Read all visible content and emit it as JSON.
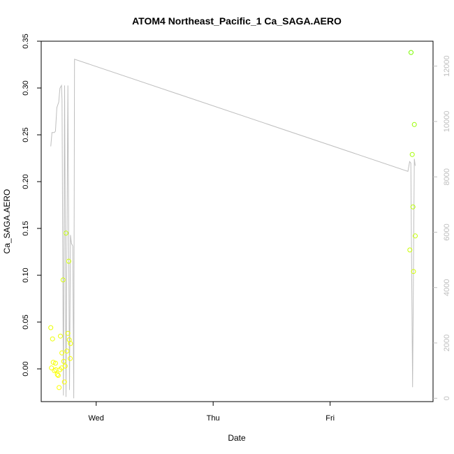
{
  "chart_data": {
    "type": "scatter",
    "title": "ATOM4 Northeast_Pacific_1 Ca_SAGA.AERO",
    "xlabel": "Date",
    "ylabel": "Ca_SAGA.AERO",
    "x_ticks": [
      {
        "label": "Wed",
        "day": 1.0
      },
      {
        "label": "Thu",
        "day": 2.0
      },
      {
        "label": "Fri",
        "day": 3.0
      }
    ],
    "xlim": [
      0.53,
      3.88
    ],
    "ylim": [
      -0.035,
      0.35
    ],
    "y_ticks": [
      0.0,
      0.05,
      0.1,
      0.15,
      0.2,
      0.25,
      0.3,
      0.35
    ],
    "y_tick_labels": [
      "0.00",
      "0.05",
      "0.10",
      "0.15",
      "0.20",
      "0.25",
      "0.30",
      "0.35"
    ],
    "y2lim": [
      -120,
      12900
    ],
    "y2_ticks": [
      0,
      2000,
      4000,
      6000,
      8000,
      10000,
      12000
    ],
    "y2_tick_labels": [
      "0",
      "2000",
      "4000",
      "6000",
      "8000",
      "10000",
      "12000"
    ],
    "grid": false,
    "series": [
      {
        "kind": "points",
        "color_low": "#ffff00",
        "color_high": "#7cfc00",
        "points": [
          {
            "x": 0.612,
            "y": 0.044
          },
          {
            "x": 0.618,
            "y": 0.001
          },
          {
            "x": 0.627,
            "y": 0.032
          },
          {
            "x": 0.633,
            "y": 0.007
          },
          {
            "x": 0.643,
            "y": -0.002
          },
          {
            "x": 0.652,
            "y": 0.006
          },
          {
            "x": 0.655,
            "y": -0.001
          },
          {
            "x": 0.668,
            "y": -0.006
          },
          {
            "x": 0.676,
            "y": -0.007
          },
          {
            "x": 0.683,
            "y": -0.02
          },
          {
            "x": 0.69,
            "y": -0.001
          },
          {
            "x": 0.694,
            "y": 0.035
          },
          {
            "x": 0.705,
            "y": 0.001
          },
          {
            "x": 0.707,
            "y": 0.017
          },
          {
            "x": 0.717,
            "y": 0.095
          },
          {
            "x": 0.722,
            "y": 0.008
          },
          {
            "x": 0.728,
            "y": -0.014
          },
          {
            "x": 0.735,
            "y": 0.003
          },
          {
            "x": 0.742,
            "y": 0.145
          },
          {
            "x": 0.75,
            "y": 0.019
          },
          {
            "x": 0.758,
            "y": 0.038
          },
          {
            "x": 0.765,
            "y": 0.115
          },
          {
            "x": 0.77,
            "y": 0.031
          },
          {
            "x": 0.78,
            "y": 0.027
          },
          {
            "x": 0.778,
            "y": 0.011
          },
          {
            "x": 3.682,
            "y": 0.127
          },
          {
            "x": 3.692,
            "y": 0.338
          },
          {
            "x": 3.702,
            "y": 0.229
          },
          {
            "x": 3.708,
            "y": 0.173
          },
          {
            "x": 3.713,
            "y": 0.104
          },
          {
            "x": 3.72,
            "y": 0.261
          },
          {
            "x": 3.728,
            "y": 0.142
          }
        ]
      },
      {
        "kind": "line",
        "axis": "right",
        "color": "#bebebe",
        "points": [
          {
            "x": 0.612,
            "y": 9100
          },
          {
            "x": 0.622,
            "y": 9600
          },
          {
            "x": 0.642,
            "y": 9600
          },
          {
            "x": 0.652,
            "y": 9650
          },
          {
            "x": 0.664,
            "y": 10500
          },
          {
            "x": 0.68,
            "y": 10700
          },
          {
            "x": 0.69,
            "y": 11200
          },
          {
            "x": 0.703,
            "y": 11300
          },
          {
            "x": 0.708,
            "y": 10800
          },
          {
            "x": 0.72,
            "y": 100
          },
          {
            "x": 0.73,
            "y": 11300
          },
          {
            "x": 0.742,
            "y": 50
          },
          {
            "x": 0.758,
            "y": 11300
          },
          {
            "x": 0.772,
            "y": 300
          },
          {
            "x": 0.78,
            "y": 5900
          },
          {
            "x": 0.788,
            "y": 5600
          },
          {
            "x": 0.8,
            "y": 5500
          },
          {
            "x": 0.808,
            "y": 0
          },
          {
            "x": 0.815,
            "y": 12250
          },
          {
            "x": 3.665,
            "y": 8200
          },
          {
            "x": 3.68,
            "y": 8550
          },
          {
            "x": 3.69,
            "y": 8500
          },
          {
            "x": 3.705,
            "y": 400
          },
          {
            "x": 3.72,
            "y": 8650
          },
          {
            "x": 3.728,
            "y": 8400
          }
        ]
      }
    ]
  }
}
